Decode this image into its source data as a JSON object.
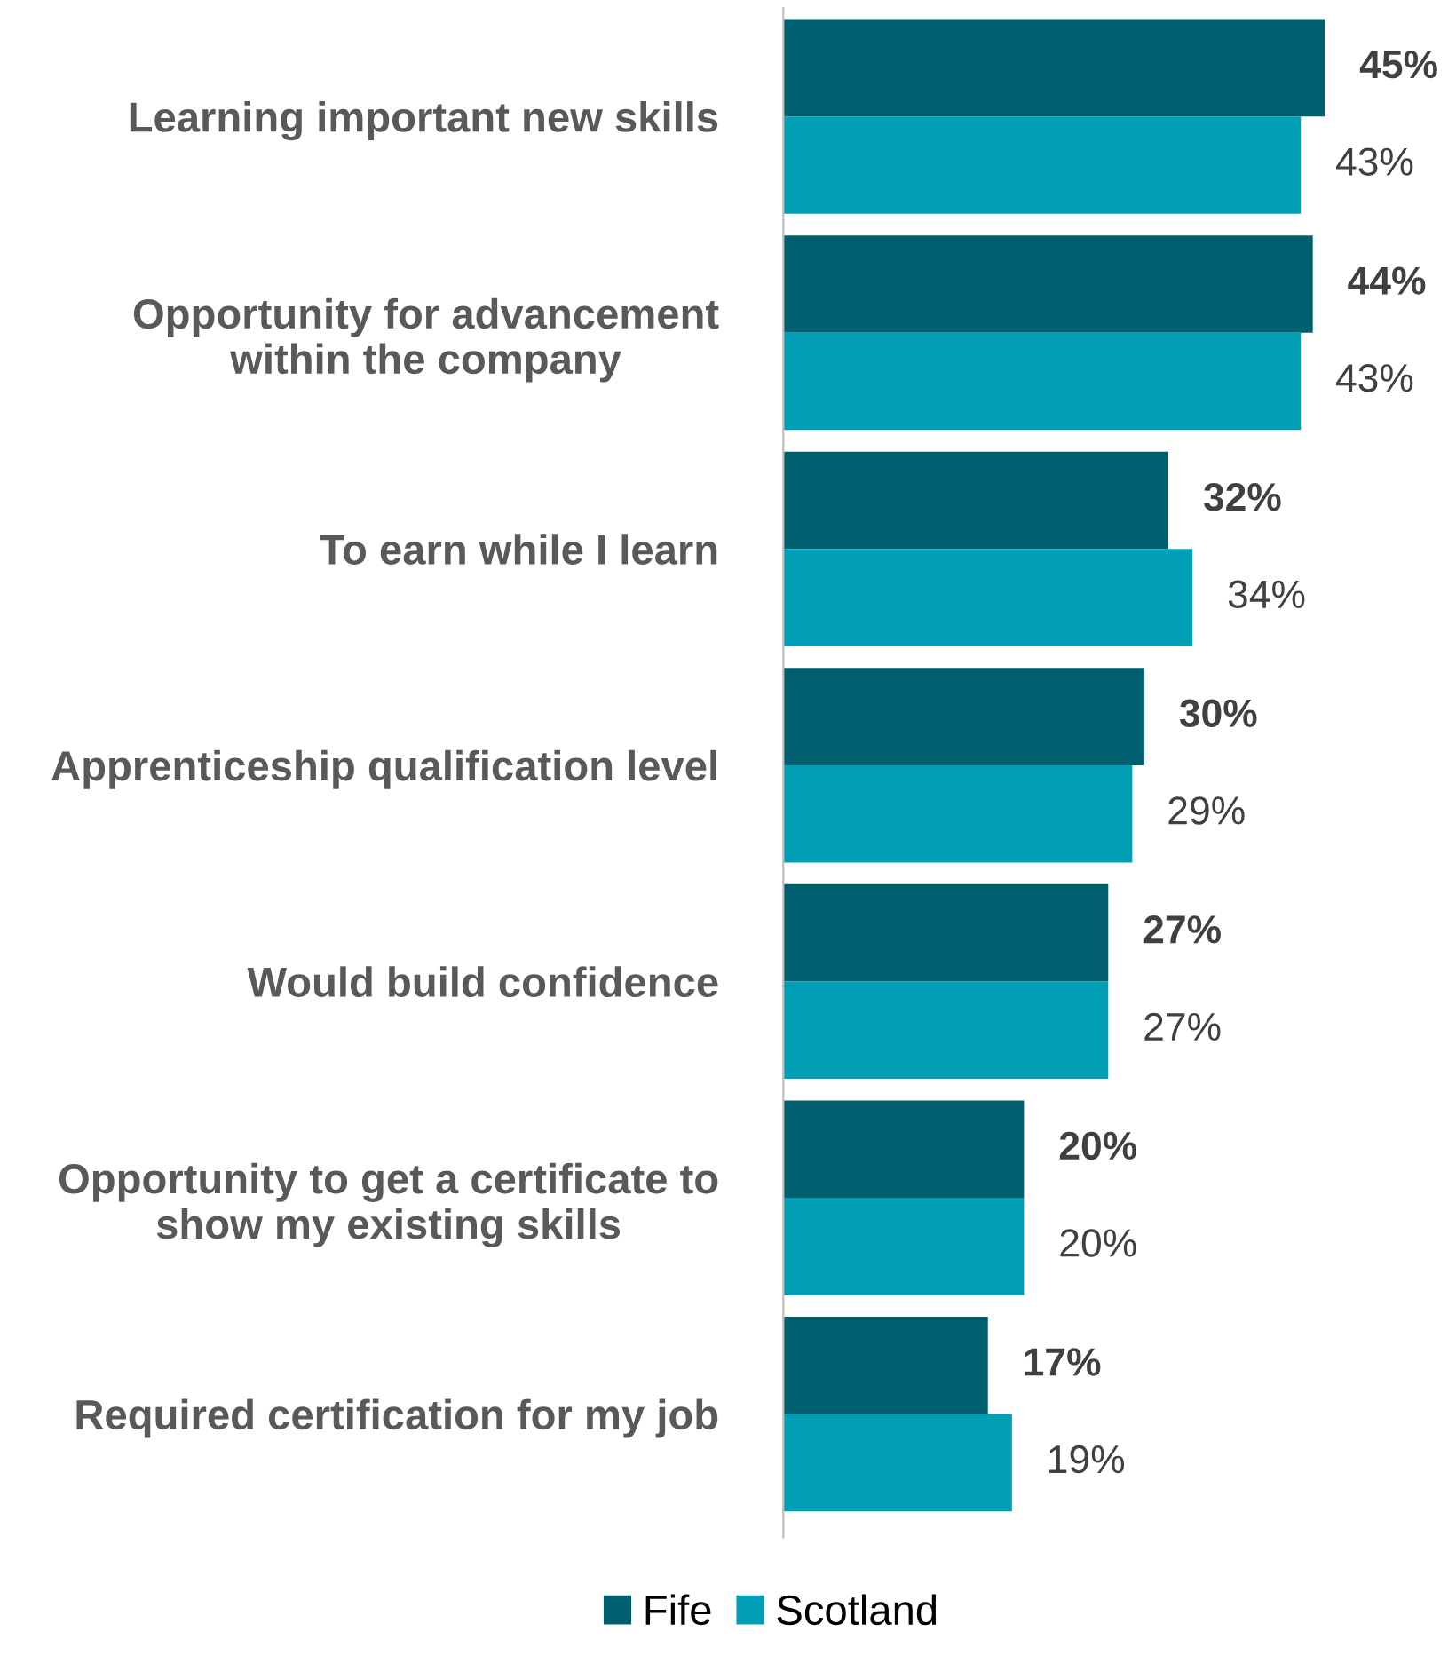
{
  "chart_data": {
    "type": "bar",
    "orientation": "horizontal",
    "categories": [
      "Learning important new skills",
      "Opportunity for advancement within the company",
      "To earn while I learn",
      "Apprenticeship qualification level",
      "Would build confidence",
      "Opportunity to get a certificate to show my existing skills",
      "Required certification for my job"
    ],
    "series": [
      {
        "name": "Fife",
        "color": "#005f6e",
        "values": [
          45,
          44,
          32,
          30,
          27,
          20,
          17
        ],
        "value_labels": [
          "45%",
          "44%",
          "32%",
          "30%",
          "27%",
          "20%",
          "17%"
        ]
      },
      {
        "name": "Scotland",
        "color": "#009fb5",
        "values": [
          43,
          43,
          34,
          29,
          27,
          20,
          19
        ],
        "value_labels": [
          "43%",
          "43%",
          "34%",
          "29%",
          "27%",
          "20%",
          "19%"
        ]
      }
    ],
    "legend": "bottom",
    "grid": false
  }
}
